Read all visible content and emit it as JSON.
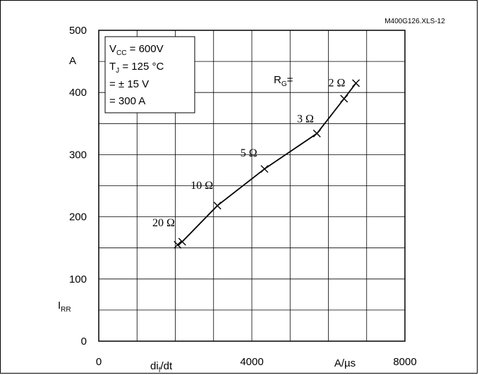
{
  "chart_data": {
    "type": "line",
    "figure_id": "M400G126.XLS-12",
    "xlim": [
      0,
      8000
    ],
    "ylim": [
      0,
      500
    ],
    "x_ticks": [
      0,
      4000,
      8000
    ],
    "y_ticks": [
      0,
      100,
      200,
      300,
      400,
      500
    ],
    "x_tick_labels": [
      "0",
      "4000",
      "8000"
    ],
    "y_tick_labels": [
      "0",
      "100",
      "200",
      "300",
      "400",
      "500"
    ],
    "x_minor_step": 1000,
    "y_minor_step": 50,
    "grid": true,
    "xlabel": "di",
    "xlabel_sub": "f",
    "xlabel_tail": "/dt",
    "x_unit": "A/µs",
    "ylabel": "I",
    "ylabel_sub": "RR",
    "y_unit": "A",
    "conditions": {
      "vcc_main": "V",
      "vcc_sub": "CC",
      "vcc_tail": " = 600V",
      "tj_main": "T",
      "tj_sub": "J",
      "tj_tail": " = 125 °C",
      "line3": "= ± 15 V",
      "line4": "= 300 A"
    },
    "rg_label_main": "R",
    "rg_label_sub": "G",
    "rg_label_tail": "=",
    "series": [
      {
        "x": [
          2060,
          2180,
          3100,
          4330,
          5700,
          6410,
          6720
        ],
        "y": [
          155,
          160,
          218,
          277,
          334,
          390,
          415
        ]
      }
    ],
    "point_labels": [
      {
        "text": "20 Ω",
        "x": 1400,
        "y": 185
      },
      {
        "text": "10 Ω",
        "x": 2400,
        "y": 245
      },
      {
        "text": "5 Ω",
        "x": 3700,
        "y": 297
      },
      {
        "text": "3 Ω",
        "x": 5180,
        "y": 352
      },
      {
        "text": "2 Ω",
        "x": 6000,
        "y": 410
      }
    ]
  }
}
